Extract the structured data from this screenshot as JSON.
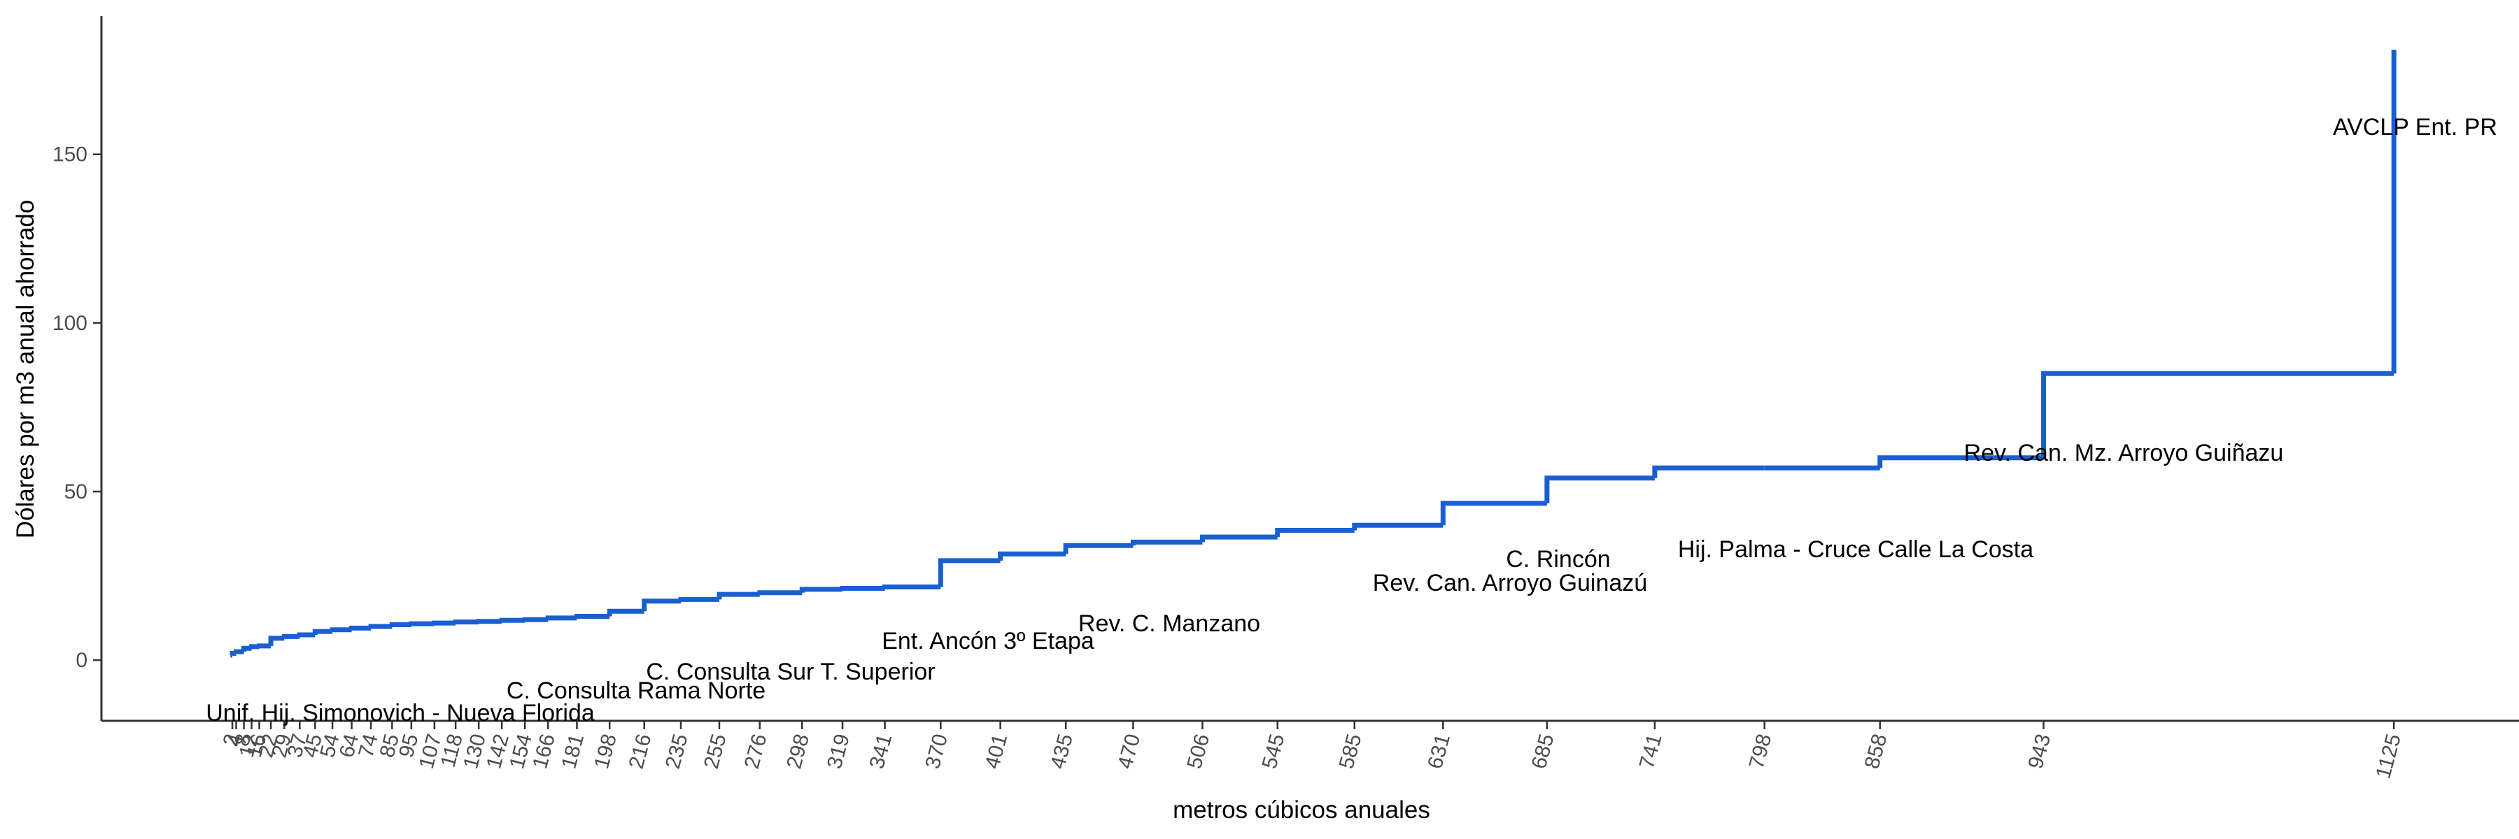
{
  "chart_data": {
    "type": "step",
    "x_label": "metros cúbicos anuales",
    "y_label": "Dólares por m3 anual ahorrado",
    "series": [
      {
        "color": "#1a5fd1",
        "x": [
          1,
          2,
          4,
          8,
          12,
          16,
          22,
          29,
          37,
          45,
          54,
          64,
          74,
          85,
          95,
          107,
          118,
          130,
          142,
          154,
          166,
          181,
          198,
          216,
          235,
          255,
          276,
          298,
          319,
          341,
          370,
          401,
          435,
          470,
          506,
          545,
          585,
          631,
          685,
          741,
          798,
          858,
          943,
          1125
        ],
        "values": [
          1.5,
          2,
          2.5,
          3.5,
          4,
          4.2,
          6.5,
          7,
          7.5,
          8.5,
          9,
          9.5,
          10,
          10.5,
          10.8,
          11,
          11.3,
          11.5,
          11.8,
          12,
          12.5,
          13,
          14.5,
          17.5,
          18,
          19.5,
          20,
          21,
          21.3,
          21.7,
          29.5,
          31.5,
          34,
          35,
          36.5,
          38.5,
          40,
          46.5,
          54,
          57,
          57,
          60,
          85,
          181
        ]
      }
    ],
    "annotations": [
      "AVCLP Ent. PR",
      "Rev. Can. Mz. Arroyo Guiñazu",
      "Hij. Palma - Cruce Calle La Costa",
      "C. Rincón",
      "Rev. Can. Arroyo Guinazú",
      "Rev. C. Manzano",
      "Ent. Ancón 3º Etapa",
      "C. Consulta Sur T. Superior",
      "C. Consulta Rama Norte",
      "Unif. Hij. Simonovich - Nueva Florida"
    ],
    "xlim": [
      -66,
      1190
    ],
    "ylim": [
      -18,
      191
    ],
    "xticks": [
      2,
      4,
      8,
      12,
      16,
      22,
      29,
      37,
      45,
      54,
      64,
      74,
      85,
      95,
      107,
      118,
      130,
      142,
      154,
      166,
      181,
      198,
      216,
      235,
      255,
      276,
      298,
      319,
      341,
      370,
      401,
      435,
      470,
      506,
      545,
      585,
      631,
      685,
      741,
      798,
      858,
      943,
      1125
    ],
    "yticks": [
      0,
      50,
      100,
      150
    ],
    "grid": false
  }
}
